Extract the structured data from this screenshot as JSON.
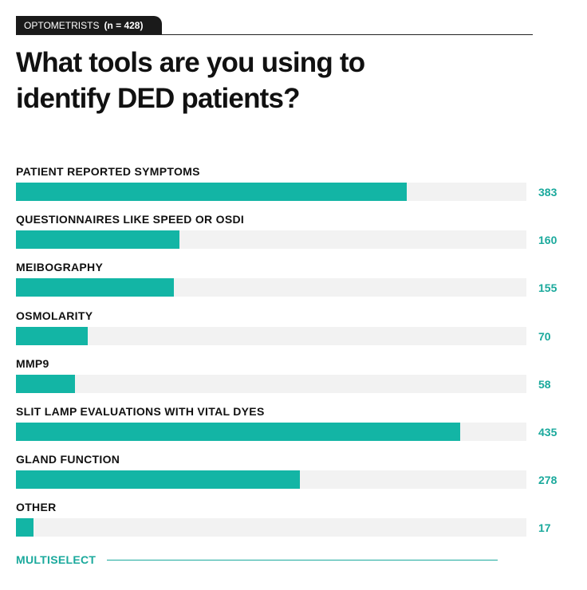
{
  "chart_data": {
    "type": "bar",
    "group": "OPTOMETRISTS",
    "sample": "(n = 428)",
    "title": "What tools are you using to identify DED patients?",
    "categories": [
      "PATIENT REPORTED SYMPTOMS",
      "QUESTIONNAIRES LIKE SPEED OR OSDI",
      "MEIBOGRAPHY",
      "OSMOLARITY",
      "MMP9",
      "SLIT LAMP EVALUATIONS WITH VITAL DYES",
      "GLAND FUNCTION",
      "OTHER"
    ],
    "values": [
      383,
      160,
      155,
      70,
      58,
      435,
      278,
      17
    ],
    "xlim": [
      0,
      500
    ],
    "color": "#13b5a5",
    "track_color": "#f2f2f2",
    "footer": "MULTISELECT"
  }
}
